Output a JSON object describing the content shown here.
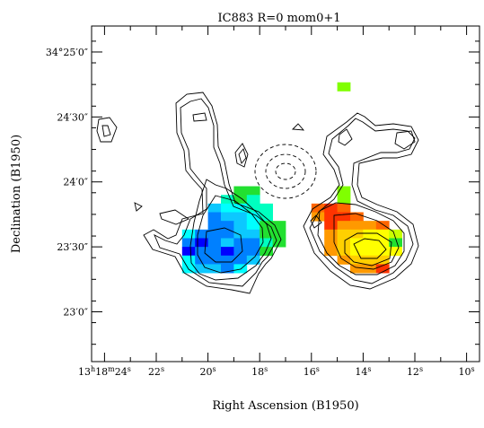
{
  "chart_data": {
    "type": "heatmap",
    "title": "IC883 R=0 mom0+1",
    "xlabel": "Right Ascension (B1950)",
    "ylabel": "Declination (B1950)",
    "x_tick_labels": [
      {
        "ra_sec": 24,
        "parts": [
          "13",
          "h",
          "18",
          "m",
          "24",
          "s"
        ]
      },
      {
        "ra_sec": 22,
        "parts": [
          "22",
          "s"
        ]
      },
      {
        "ra_sec": 20,
        "parts": [
          "20",
          "s"
        ]
      },
      {
        "ra_sec": 18,
        "parts": [
          "18",
          "s"
        ]
      },
      {
        "ra_sec": 16,
        "parts": [
          "16",
          "s"
        ]
      },
      {
        "ra_sec": 14,
        "parts": [
          "14",
          "s"
        ]
      },
      {
        "ra_sec": 12,
        "parts": [
          "12",
          "s"
        ]
      },
      {
        "ra_sec": 10,
        "parts": [
          "10",
          "s"
        ]
      }
    ],
    "y_tick_labels": [
      {
        "dec_arcsec": 30,
        "parts": [
          "34°25′0″"
        ]
      },
      {
        "dec_arcsec": 0,
        "parts": [
          "24′30″"
        ]
      },
      {
        "dec_arcsec": -30,
        "parts": [
          "24′0″"
        ]
      },
      {
        "dec_arcsec": -60,
        "parts": [
          "23′30″"
        ]
      },
      {
        "dec_arcsec": -90,
        "parts": [
          "23′0″"
        ]
      }
    ],
    "xlim_ra_sec": [
      24.5,
      9.5
    ],
    "ylim_dec_arcsec": [
      -113,
      42
    ],
    "pixel_size": [
      0.5,
      4
    ],
    "colormap": {
      "blue": "#0000ff",
      "mid_blue": "#0080ff",
      "light_blue": "#0cc8ff",
      "cyan": "#00ffff",
      "aqua": "#00ffc0",
      "green": "#22e030",
      "lime": "#80ff00",
      "yellow_green": "#c8ff00",
      "yellow": "#ffff00",
      "gold": "#ffd000",
      "orange": "#ff9900",
      "dark_orange": "#ff6600",
      "red_orange": "#ff3300"
    },
    "pixels": [
      {
        "x": 14.75,
        "y": 14,
        "c": "lime"
      },
      {
        "x": 18.75,
        "y": -34,
        "c": "green"
      },
      {
        "x": 18.25,
        "y": -34,
        "c": "green"
      },
      {
        "x": 14.75,
        "y": -34,
        "c": "lime"
      },
      {
        "x": 19.25,
        "y": -38,
        "c": "aqua"
      },
      {
        "x": 18.75,
        "y": -38,
        "c": "green"
      },
      {
        "x": 18.25,
        "y": -38,
        "c": "aqua"
      },
      {
        "x": 14.75,
        "y": -38,
        "c": "lime"
      },
      {
        "x": 19.75,
        "y": -42,
        "c": "light_blue"
      },
      {
        "x": 19.25,
        "y": -42,
        "c": "cyan"
      },
      {
        "x": 18.75,
        "y": -42,
        "c": "cyan"
      },
      {
        "x": 18.25,
        "y": -42,
        "c": "aqua"
      },
      {
        "x": 17.75,
        "y": -42,
        "c": "aqua"
      },
      {
        "x": 15.75,
        "y": -42,
        "c": "dark_orange"
      },
      {
        "x": 15.25,
        "y": -42,
        "c": "red_orange"
      },
      {
        "x": 14.75,
        "y": -42,
        "c": "dark_orange"
      },
      {
        "x": 19.75,
        "y": -46,
        "c": "mid_blue"
      },
      {
        "x": 19.25,
        "y": -46,
        "c": "light_blue"
      },
      {
        "x": 18.75,
        "y": -46,
        "c": "light_blue"
      },
      {
        "x": 18.25,
        "y": -46,
        "c": "cyan"
      },
      {
        "x": 17.75,
        "y": -46,
        "c": "aqua"
      },
      {
        "x": 15.75,
        "y": -46,
        "c": "orange"
      },
      {
        "x": 15.25,
        "y": -46,
        "c": "red_orange"
      },
      {
        "x": 14.75,
        "y": -46,
        "c": "red_orange"
      },
      {
        "x": 14.25,
        "y": -46,
        "c": "dark_orange"
      },
      {
        "x": 19.75,
        "y": -50,
        "c": "mid_blue"
      },
      {
        "x": 19.25,
        "y": -50,
        "c": "mid_blue"
      },
      {
        "x": 18.75,
        "y": -50,
        "c": "light_blue"
      },
      {
        "x": 18.25,
        "y": -50,
        "c": "cyan"
      },
      {
        "x": 17.75,
        "y": -50,
        "c": "green"
      },
      {
        "x": 17.25,
        "y": -50,
        "c": "green"
      },
      {
        "x": 15.25,
        "y": -50,
        "c": "red_orange"
      },
      {
        "x": 14.75,
        "y": -50,
        "c": "orange"
      },
      {
        "x": 14.25,
        "y": -50,
        "c": "orange"
      },
      {
        "x": 13.75,
        "y": -50,
        "c": "orange"
      },
      {
        "x": 13.25,
        "y": -50,
        "c": "dark_orange"
      },
      {
        "x": 20.75,
        "y": -54,
        "c": "cyan"
      },
      {
        "x": 20.25,
        "y": -54,
        "c": "mid_blue"
      },
      {
        "x": 19.75,
        "y": -54,
        "c": "mid_blue"
      },
      {
        "x": 19.25,
        "y": -54,
        "c": "mid_blue"
      },
      {
        "x": 18.75,
        "y": -54,
        "c": "light_blue"
      },
      {
        "x": 18.25,
        "y": -54,
        "c": "light_blue"
      },
      {
        "x": 17.75,
        "y": -54,
        "c": "green"
      },
      {
        "x": 17.25,
        "y": -54,
        "c": "green"
      },
      {
        "x": 15.25,
        "y": -54,
        "c": "orange"
      },
      {
        "x": 14.75,
        "y": -54,
        "c": "gold"
      },
      {
        "x": 14.25,
        "y": -54,
        "c": "gold"
      },
      {
        "x": 13.75,
        "y": -54,
        "c": "yellow"
      },
      {
        "x": 13.25,
        "y": -54,
        "c": "yellow"
      },
      {
        "x": 12.75,
        "y": -54,
        "c": "yellow_green"
      },
      {
        "x": 20.75,
        "y": -58,
        "c": "mid_blue"
      },
      {
        "x": 20.25,
        "y": -58,
        "c": "blue"
      },
      {
        "x": 19.75,
        "y": -58,
        "c": "mid_blue"
      },
      {
        "x": 19.25,
        "y": -58,
        "c": "light_blue"
      },
      {
        "x": 18.75,
        "y": -58,
        "c": "mid_blue"
      },
      {
        "x": 18.25,
        "y": -58,
        "c": "mid_blue"
      },
      {
        "x": 17.75,
        "y": -58,
        "c": "aqua"
      },
      {
        "x": 17.25,
        "y": -58,
        "c": "green"
      },
      {
        "x": 15.25,
        "y": -58,
        "c": "orange"
      },
      {
        "x": 14.75,
        "y": -58,
        "c": "gold"
      },
      {
        "x": 14.25,
        "y": -58,
        "c": "yellow"
      },
      {
        "x": 13.75,
        "y": -58,
        "c": "yellow"
      },
      {
        "x": 13.25,
        "y": -58,
        "c": "yellow"
      },
      {
        "x": 12.75,
        "y": -58,
        "c": "green"
      },
      {
        "x": 20.75,
        "y": -62,
        "c": "blue"
      },
      {
        "x": 20.25,
        "y": -62,
        "c": "mid_blue"
      },
      {
        "x": 19.75,
        "y": -62,
        "c": "mid_blue"
      },
      {
        "x": 19.25,
        "y": -62,
        "c": "blue"
      },
      {
        "x": 18.75,
        "y": -62,
        "c": "mid_blue"
      },
      {
        "x": 18.25,
        "y": -62,
        "c": "mid_blue"
      },
      {
        "x": 17.75,
        "y": -62,
        "c": "green"
      },
      {
        "x": 15.25,
        "y": -62,
        "c": "orange"
      },
      {
        "x": 14.75,
        "y": -62,
        "c": "gold"
      },
      {
        "x": 14.25,
        "y": -62,
        "c": "yellow"
      },
      {
        "x": 13.75,
        "y": -62,
        "c": "yellow"
      },
      {
        "x": 13.25,
        "y": -62,
        "c": "yellow"
      },
      {
        "x": 12.75,
        "y": -62,
        "c": "yellow"
      },
      {
        "x": 20.75,
        "y": -66,
        "c": "cyan"
      },
      {
        "x": 20.25,
        "y": -66,
        "c": "mid_blue"
      },
      {
        "x": 19.75,
        "y": -66,
        "c": "mid_blue"
      },
      {
        "x": 19.25,
        "y": -66,
        "c": "mid_blue"
      },
      {
        "x": 18.75,
        "y": -66,
        "c": "mid_blue"
      },
      {
        "x": 18.25,
        "y": -66,
        "c": "light_blue"
      },
      {
        "x": 14.75,
        "y": -66,
        "c": "orange"
      },
      {
        "x": 14.25,
        "y": -66,
        "c": "gold"
      },
      {
        "x": 13.75,
        "y": -66,
        "c": "gold"
      },
      {
        "x": 13.25,
        "y": -66,
        "c": "gold"
      },
      {
        "x": 20.75,
        "y": -70,
        "c": "cyan"
      },
      {
        "x": 20.25,
        "y": -70,
        "c": "light_blue"
      },
      {
        "x": 19.75,
        "y": -70,
        "c": "light_blue"
      },
      {
        "x": 19.25,
        "y": -70,
        "c": "mid_blue"
      },
      {
        "x": 18.75,
        "y": -70,
        "c": "cyan"
      },
      {
        "x": 14.25,
        "y": -70,
        "c": "orange"
      },
      {
        "x": 13.75,
        "y": -70,
        "c": "orange"
      },
      {
        "x": 13.25,
        "y": -70,
        "c": "red_orange"
      }
    ]
  }
}
